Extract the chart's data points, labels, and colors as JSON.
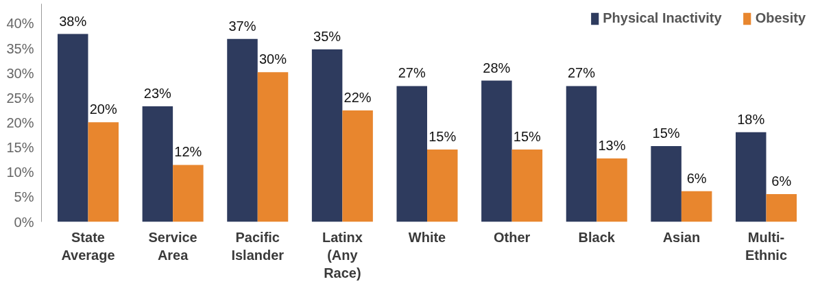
{
  "chart_data": {
    "type": "bar",
    "categories": [
      "State Average",
      "Service Area",
      "Pacific Islander",
      "Latinx (Any Race)",
      "White",
      "Other",
      "Black",
      "Asian",
      "Multi-Ethnic"
    ],
    "series": [
      {
        "name": "Physical Inactivity",
        "color": "#2e3b5e",
        "values": [
          37.9,
          23.3,
          36.9,
          34.8,
          27.4,
          28.5,
          27.4,
          15.3,
          18.1
        ],
        "value_labels": [
          "38%",
          "23%",
          "37%",
          "35%",
          "27%",
          "28%",
          "27%",
          "15%",
          "18%"
        ]
      },
      {
        "name": "Obesity",
        "color": "#e8862e",
        "values": [
          20.1,
          11.5,
          30.2,
          22.5,
          14.6,
          14.6,
          12.8,
          6.2,
          5.6
        ],
        "value_labels": [
          "20%",
          "12%",
          "30%",
          "22%",
          "15%",
          "15%",
          "13%",
          "6%",
          "6%"
        ]
      }
    ],
    "ylim": [
      0,
      44
    ],
    "yticks": [
      {
        "value": 0,
        "label": "0%"
      },
      {
        "value": 5,
        "label": "5%"
      },
      {
        "value": 10,
        "label": "10%"
      },
      {
        "value": 15,
        "label": "15%"
      },
      {
        "value": 20,
        "label": "20%"
      },
      {
        "value": 25,
        "label": "25%"
      },
      {
        "value": 30,
        "label": "30%"
      },
      {
        "value": 35,
        "label": "35%"
      },
      {
        "value": 40,
        "label": "40%"
      }
    ],
    "grid": false,
    "legend": "top right"
  }
}
